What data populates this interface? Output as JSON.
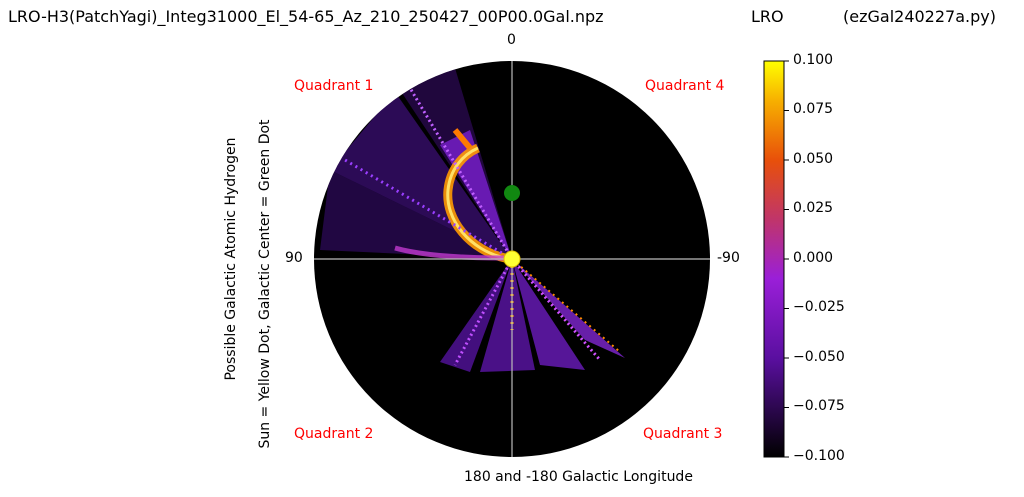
{
  "header": {
    "title_left": "LRO-H3(PatchYagi)_Integ31000_El_54-65_Az_210_250427_00P00.0Gal.npz",
    "title_center": "LRO",
    "title_right": "(ezGal240227a.py)"
  },
  "chart_data": {
    "type": "heatmap",
    "projection": "polar",
    "title": "LRO-H3(PatchYagi)_Integ31000_El_54-65_Az_210_250427_00P00.0Gal.npz",
    "xlabel": "180 and -180 Galactic Longitude",
    "ylabel_line1": "Possible Galactic Atomic Hydrogen",
    "ylabel_line2": "Sun = Yellow Dot, Galactic Center = Green Dot",
    "angle_labels": {
      "top": "0",
      "left": "90",
      "right": "-90"
    },
    "quadrants": [
      "Quadrant 1",
      "Quadrant 2",
      "Quadrant 3",
      "Quadrant 4"
    ],
    "colorbar": {
      "colormap": "gnuplot",
      "range": [
        -0.1,
        0.1
      ],
      "ticks": [
        "0.100",
        "0.075",
        "0.050",
        "0.025",
        "0.000",
        "−0.025",
        "−0.050",
        "−0.075",
        "−0.100"
      ]
    },
    "markers": [
      {
        "name": "Sun",
        "color": "#ffff33"
      },
      {
        "name": "Galactic Center",
        "color": "#118811"
      }
    ],
    "background_color": "#000000",
    "quadrant_label_color": "#ff0000"
  }
}
